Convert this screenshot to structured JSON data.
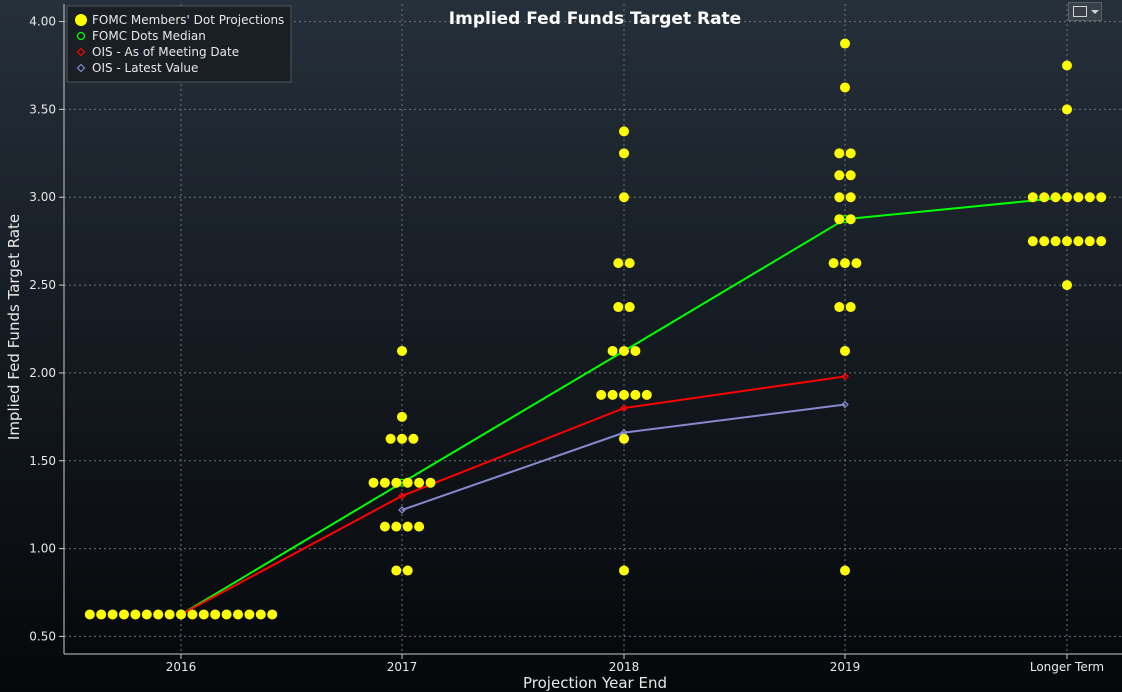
{
  "chart_data": {
    "type": "scatter",
    "title": "Implied Fed Funds Target Rate",
    "xlabel": "Projection Year End",
    "ylabel": "Implied Fed Funds Target Rate",
    "categories": [
      "2016",
      "2017",
      "2018",
      "2019",
      "Longer Term"
    ],
    "ylim": [
      0.4,
      4.1
    ],
    "yticks": [
      "0.50",
      "1.00",
      "1.50",
      "2.00",
      "2.50",
      "3.00",
      "3.50",
      "4.00"
    ],
    "grid": true,
    "legend_position": "top-left",
    "series": [
      {
        "name": "FOMC Members' Dot Projections",
        "kind": "dots",
        "color": "#ffff00",
        "points": [
          {
            "category": "2016",
            "values": [
              {
                "y": 0.625,
                "count": 17
              }
            ]
          },
          {
            "category": "2017",
            "values": [
              {
                "y": 2.125,
                "count": 1
              },
              {
                "y": 1.75,
                "count": 1
              },
              {
                "y": 1.625,
                "count": 3
              },
              {
                "y": 1.375,
                "count": 6
              },
              {
                "y": 1.125,
                "count": 4
              },
              {
                "y": 0.875,
                "count": 2
              }
            ]
          },
          {
            "category": "2018",
            "values": [
              {
                "y": 3.375,
                "count": 1
              },
              {
                "y": 3.25,
                "count": 1
              },
              {
                "y": 3.0,
                "count": 1
              },
              {
                "y": 2.625,
                "count": 2
              },
              {
                "y": 2.375,
                "count": 2
              },
              {
                "y": 2.125,
                "count": 3
              },
              {
                "y": 1.875,
                "count": 5
              },
              {
                "y": 1.625,
                "count": 1
              },
              {
                "y": 0.875,
                "count": 1
              }
            ]
          },
          {
            "category": "2019",
            "values": [
              {
                "y": 3.875,
                "count": 1
              },
              {
                "y": 3.625,
                "count": 1
              },
              {
                "y": 3.25,
                "count": 2
              },
              {
                "y": 3.125,
                "count": 2
              },
              {
                "y": 3.0,
                "count": 2
              },
              {
                "y": 2.875,
                "count": 2
              },
              {
                "y": 2.625,
                "count": 3
              },
              {
                "y": 2.375,
                "count": 2
              },
              {
                "y": 2.125,
                "count": 1
              },
              {
                "y": 0.875,
                "count": 1
              }
            ]
          },
          {
            "category": "Longer Term",
            "values": [
              {
                "y": 3.75,
                "count": 1
              },
              {
                "y": 3.5,
                "count": 1
              },
              {
                "y": 3.0,
                "count": 7
              },
              {
                "y": 2.75,
                "count": 7
              },
              {
                "y": 2.5,
                "count": 1
              }
            ]
          }
        ]
      },
      {
        "name": "FOMC Dots Median",
        "kind": "line",
        "color": "#00ff00",
        "x": [
          "2016",
          "2017",
          "2018",
          "2019",
          "Longer Term"
        ],
        "values": [
          0.625,
          1.375,
          2.125,
          2.875,
          3.0
        ]
      },
      {
        "name": "OIS - As of Meeting Date",
        "kind": "line",
        "color": "#ff0000",
        "x": [
          "2016",
          "2017",
          "2018",
          "2019"
        ],
        "values": [
          0.625,
          1.3,
          1.8,
          1.98
        ]
      },
      {
        "name": "OIS - Latest Value",
        "kind": "line",
        "color": "#8888cc",
        "x": [
          "2017",
          "2018",
          "2019"
        ],
        "values": [
          1.22,
          1.66,
          1.82
        ]
      }
    ]
  },
  "legend_marker_icons": [
    "large-dot-icon",
    "small-circle-icon",
    "small-diamond-icon",
    "small-diamond-icon"
  ]
}
